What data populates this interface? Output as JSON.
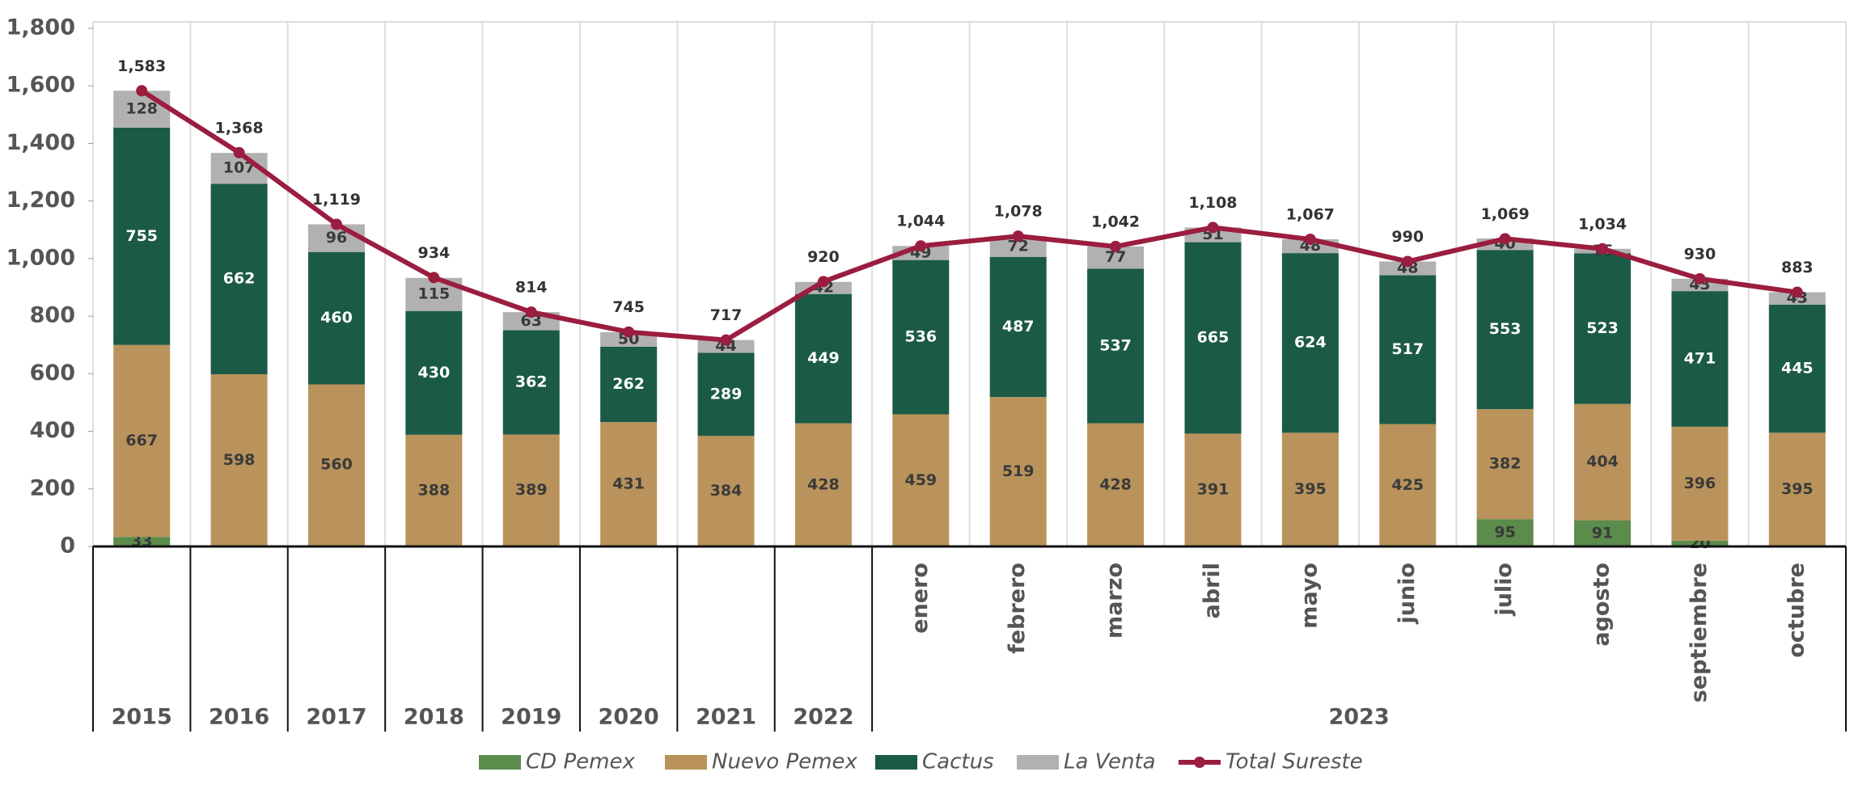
{
  "chart_data": {
    "type": "stacked-bar-line",
    "categories": [
      "2015",
      "2016",
      "2017",
      "2018",
      "2019",
      "2020",
      "2021",
      "2022",
      "enero",
      "febrero",
      "marzo",
      "abril",
      "mayo",
      "junio",
      "julio",
      "agosto",
      "septiembre",
      "octubre"
    ],
    "category_groups": [
      {
        "label": "2023",
        "from": 8,
        "to": 17
      }
    ],
    "series": [
      {
        "name": "CD Pemex",
        "color": "#5b8c4c",
        "values": [
          33,
          0,
          3,
          0,
          0,
          1,
          0,
          0,
          0,
          0,
          0,
          1,
          0,
          0,
          95,
          91,
          20,
          0
        ]
      },
      {
        "name": "Nuevo Pemex",
        "color": "#b9935b",
        "values": [
          667,
          598,
          560,
          388,
          389,
          431,
          384,
          428,
          459,
          519,
          428,
          391,
          395,
          425,
          382,
          404,
          396,
          395
        ]
      },
      {
        "name": "Cactus",
        "color": "#1b5a47",
        "values": [
          755,
          662,
          460,
          430,
          362,
          262,
          289,
          449,
          536,
          487,
          537,
          665,
          624,
          517,
          553,
          523,
          471,
          445
        ]
      },
      {
        "name": "La Venta",
        "color": "#b1b1b1",
        "values": [
          128,
          107,
          96,
          115,
          63,
          50,
          44,
          42,
          49,
          72,
          77,
          51,
          48,
          48,
          40,
          16,
          43,
          43
        ]
      },
      {
        "name": "Total Sureste",
        "color": "#9b1d3f",
        "kind": "line",
        "values": [
          1583,
          1368,
          1119,
          934,
          814,
          745,
          717,
          920,
          1044,
          1078,
          1042,
          1108,
          1067,
          990,
          1069,
          1034,
          930,
          883
        ],
        "value_labels": [
          "1,583",
          "1,368",
          "1,119",
          "934",
          "814",
          "745",
          "717",
          "920",
          "1,044",
          "1,078",
          "1,042",
          "1,108",
          "1,067",
          "990",
          "1,069",
          "1,034",
          "930",
          "883"
        ]
      }
    ],
    "ylim": [
      0,
      1800
    ],
    "yticks": [
      0,
      200,
      400,
      600,
      800,
      {
        "value": 1000,
        "label": "1,000"
      },
      {
        "value": 1200,
        "label": "1,200"
      },
      {
        "value": 1400,
        "label": "1,400"
      },
      {
        "value": 1600,
        "label": "1,600"
      },
      {
        "value": 1800,
        "label": "1,800"
      }
    ],
    "legend": "bottom"
  }
}
